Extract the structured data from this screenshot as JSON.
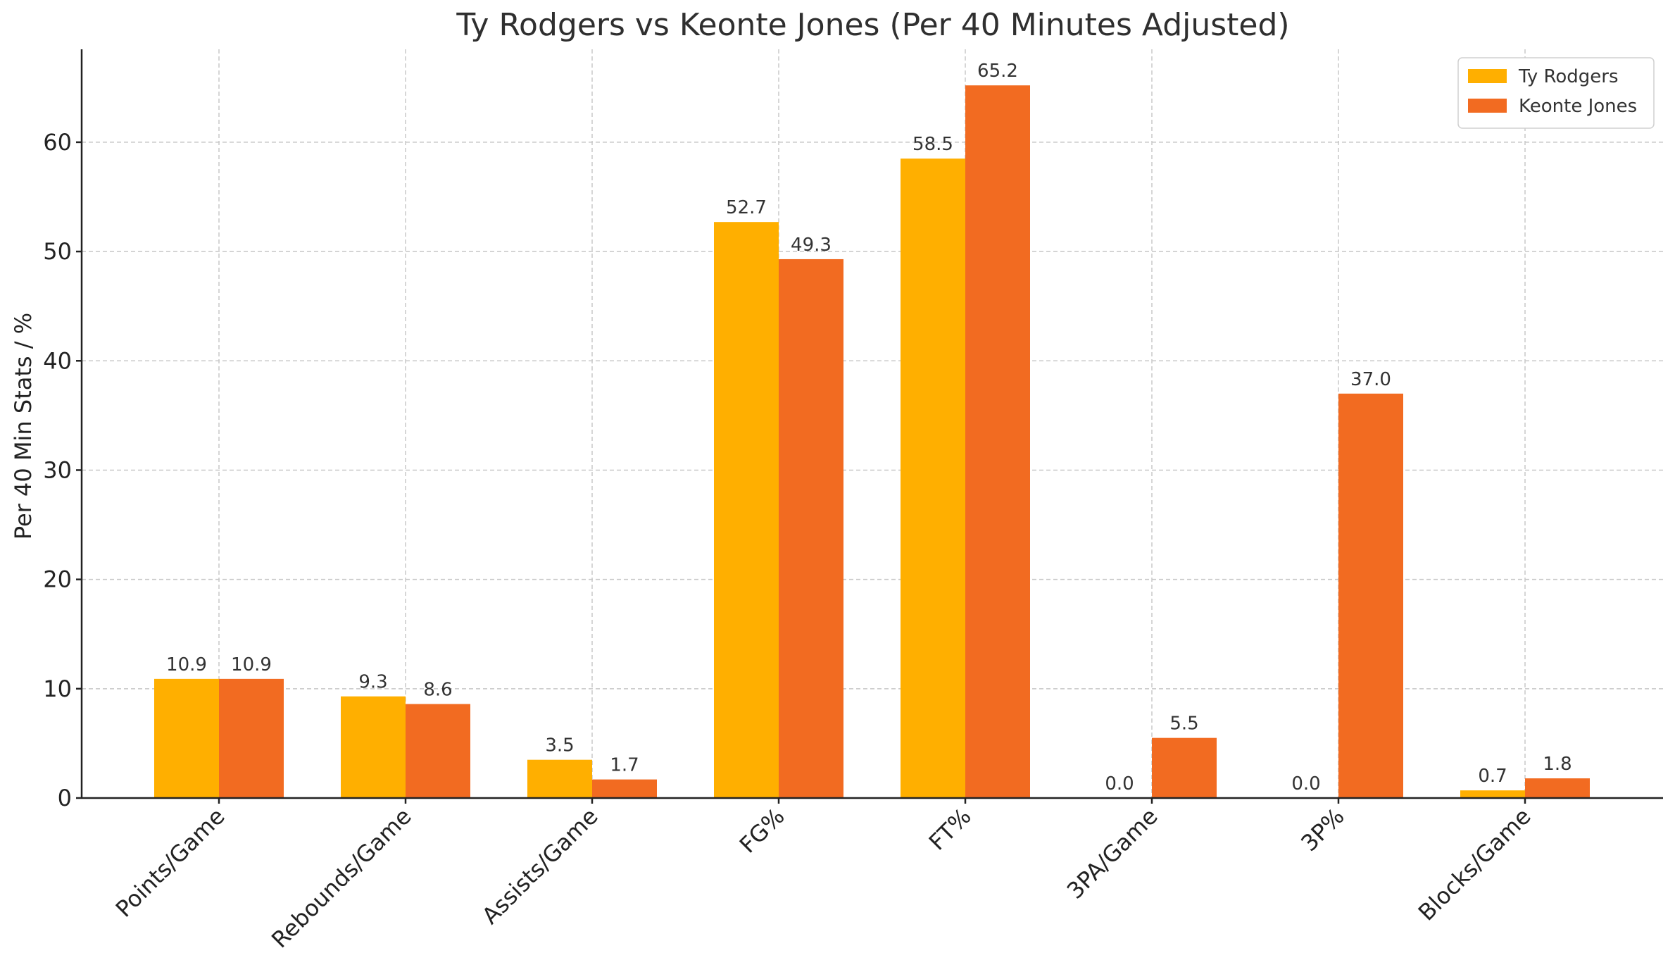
{
  "chart_data": {
    "type": "bar",
    "title": "Ty Rodgers vs Keonte Jones (Per 40 Minutes Adjusted)",
    "xlabel": "",
    "ylabel": "Per 40 Min Stats / %",
    "categories": [
      "Points/Game",
      "Rebounds/Game",
      "Assists/Game",
      "FG%",
      "FT%",
      "3PA/Game",
      "3P%",
      "Blocks/Game"
    ],
    "series": [
      {
        "name": "Ty Rodgers",
        "color": "#FFAF00",
        "values": [
          10.9,
          9.3,
          3.5,
          52.7,
          58.5,
          0.0,
          0.0,
          0.7
        ]
      },
      {
        "name": "Keonte Jones",
        "color": "#F26B21",
        "values": [
          10.9,
          8.6,
          1.7,
          49.3,
          65.2,
          5.5,
          37.0,
          1.8
        ]
      }
    ],
    "ylim": [
      0,
      68.5
    ],
    "yticks": [
      0,
      10,
      20,
      30,
      40,
      50,
      60
    ],
    "grid": true,
    "legend_position": "top-right"
  }
}
